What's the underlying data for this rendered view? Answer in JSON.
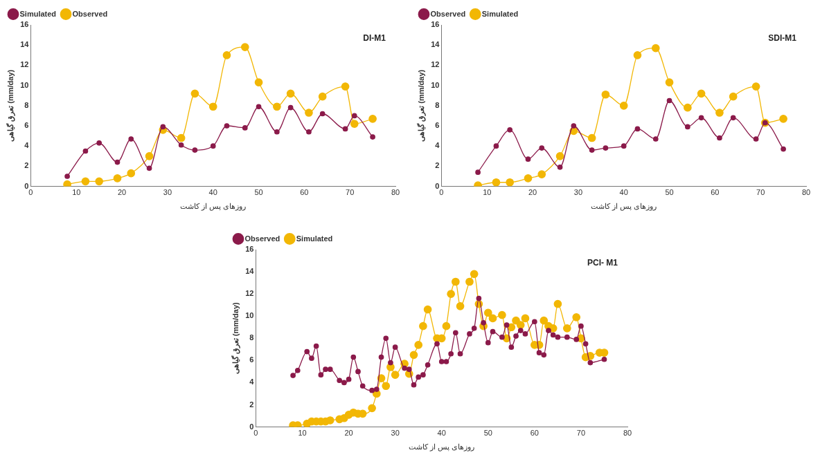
{
  "chart_data": [
    {
      "type": "line",
      "title": "DI-M1",
      "xlabel": "روزهای پس از کاشت",
      "ylabel": "تعرق گیاهی (mm/day)",
      "xlim": [
        0,
        80
      ],
      "xticks": [
        0,
        10,
        20,
        30,
        40,
        50,
        60,
        70,
        80
      ],
      "ylim": [
        0,
        16
      ],
      "yticks": [
        0,
        2,
        4,
        6,
        8,
        10,
        12,
        14,
        16
      ],
      "grid": false,
      "legend": "top left",
      "marker": "circle",
      "x": [
        8,
        12,
        15,
        19,
        22,
        26,
        29,
        33,
        36,
        40,
        43,
        47,
        50,
        54,
        57,
        61,
        64,
        69,
        71,
        75
      ],
      "series": [
        {
          "name": "Simulated",
          "color": "#8b1a4a",
          "values": [
            1.0,
            3.5,
            4.3,
            2.4,
            4.7,
            1.8,
            5.9,
            4.1,
            3.6,
            4.0,
            6.0,
            5.8,
            7.9,
            5.4,
            7.8,
            5.4,
            7.2,
            5.7,
            7.0,
            4.9
          ]
        },
        {
          "name": "Observed",
          "color": "#f2b705",
          "values": [
            0.2,
            0.5,
            0.5,
            0.8,
            1.3,
            3.0,
            5.6,
            4.8,
            9.2,
            7.9,
            13.0,
            13.8,
            10.3,
            7.9,
            9.2,
            7.3,
            8.9,
            9.9,
            6.2,
            6.7
          ]
        }
      ]
    },
    {
      "type": "line",
      "title": "SDI-M1",
      "xlabel": "روزهای پس از کاشت",
      "ylabel": "تعرق گیاهی (mm/day)",
      "xlim": [
        0,
        80
      ],
      "xticks": [
        0,
        10,
        20,
        30,
        40,
        50,
        60,
        70,
        80
      ],
      "ylim": [
        0,
        16
      ],
      "yticks": [
        0,
        2,
        4,
        6,
        8,
        10,
        12,
        14,
        16
      ],
      "grid": false,
      "legend": "top left",
      "marker": "circle",
      "x": [
        8,
        12,
        15,
        19,
        22,
        26,
        29,
        33,
        36,
        40,
        43,
        47,
        50,
        54,
        57,
        61,
        64,
        69,
        71,
        75
      ],
      "series": [
        {
          "name": "Observed",
          "color": "#8b1a4a",
          "values": [
            1.4,
            4.0,
            5.6,
            2.7,
            3.8,
            1.9,
            6.0,
            3.6,
            3.8,
            4.0,
            5.7,
            4.7,
            8.5,
            5.9,
            6.8,
            4.8,
            6.8,
            4.7,
            6.3,
            3.7
          ]
        },
        {
          "name": "Simulated",
          "color": "#f2b705",
          "values": [
            0.1,
            0.4,
            0.4,
            0.8,
            1.2,
            3.0,
            5.5,
            4.8,
            9.1,
            8.0,
            13.0,
            13.7,
            10.3,
            7.8,
            9.2,
            7.3,
            8.9,
            9.9,
            6.3,
            6.7
          ]
        }
      ]
    },
    {
      "type": "line",
      "title": "PCI- M1",
      "xlabel": "روزهای پس از کاشت",
      "ylabel": "تعرق گیاهی (mm/day)",
      "xlim": [
        0,
        80
      ],
      "xticks": [
        0,
        10,
        20,
        30,
        40,
        50,
        60,
        70,
        80
      ],
      "ylim": [
        0,
        16
      ],
      "yticks": [
        0,
        2,
        4,
        6,
        8,
        10,
        12,
        14,
        16
      ],
      "grid": false,
      "legend": "top left",
      "marker": "circle",
      "series": [
        {
          "name": "Observed",
          "color": "#8b1a4a",
          "x": [
            8,
            9,
            11,
            12,
            13,
            14,
            15,
            16,
            18,
            19,
            20,
            21,
            22,
            23,
            25,
            26,
            27,
            28,
            29,
            30,
            32,
            33,
            34,
            35,
            36,
            37,
            39,
            40,
            41,
            42,
            43,
            44,
            46,
            47,
            48,
            49,
            50,
            51,
            53,
            54,
            55,
            56,
            57,
            58,
            60,
            61,
            62,
            63,
            64,
            65,
            67,
            69,
            70,
            71,
            72,
            75
          ],
          "values": [
            4.65,
            5.1,
            6.8,
            6.2,
            7.3,
            4.7,
            5.2,
            5.2,
            4.2,
            4.0,
            4.3,
            6.3,
            5.0,
            3.7,
            3.3,
            3.4,
            6.3,
            8.0,
            5.8,
            7.2,
            5.3,
            5.2,
            3.8,
            4.5,
            4.7,
            5.6,
            7.5,
            5.9,
            5.9,
            6.6,
            8.5,
            6.6,
            8.4,
            8.9,
            11.6,
            9.4,
            7.6,
            8.6,
            8.1,
            9.2,
            7.2,
            8.2,
            8.7,
            8.4,
            9.5,
            6.7,
            6.5,
            8.7,
            8.3,
            8.1,
            8.1,
            7.9,
            9.1,
            7.5,
            5.8,
            6.1
          ]
        },
        {
          "name": "Simulated",
          "color": "#f2b705",
          "x": [
            8,
            9,
            11,
            12,
            13,
            14,
            15,
            16,
            18,
            19,
            20,
            21,
            22,
            23,
            25,
            26,
            27,
            28,
            29,
            30,
            32,
            33,
            34,
            35,
            36,
            37,
            39,
            40,
            41,
            42,
            43,
            44,
            46,
            47,
            48,
            49,
            50,
            51,
            53,
            54,
            55,
            56,
            57,
            58,
            60,
            61,
            62,
            63,
            64,
            65,
            67,
            69,
            70,
            71,
            72,
            74,
            75
          ],
          "values": [
            0.15,
            0.15,
            0.3,
            0.5,
            0.5,
            0.5,
            0.5,
            0.6,
            0.7,
            0.8,
            1.1,
            1.3,
            1.2,
            1.2,
            1.7,
            3.0,
            4.4,
            3.7,
            5.4,
            4.7,
            5.7,
            4.8,
            6.5,
            7.4,
            9.1,
            10.6,
            8.0,
            8.0,
            9.1,
            12.0,
            13.1,
            10.9,
            13.1,
            13.8,
            11.1,
            9.1,
            10.3,
            9.8,
            10.1,
            8.0,
            9.0,
            9.6,
            9.2,
            9.8,
            7.4,
            7.4,
            9.6,
            9.1,
            8.9,
            11.1,
            8.9,
            9.9,
            8.0,
            6.3,
            6.4,
            6.7,
            6.7
          ]
        }
      ]
    }
  ]
}
